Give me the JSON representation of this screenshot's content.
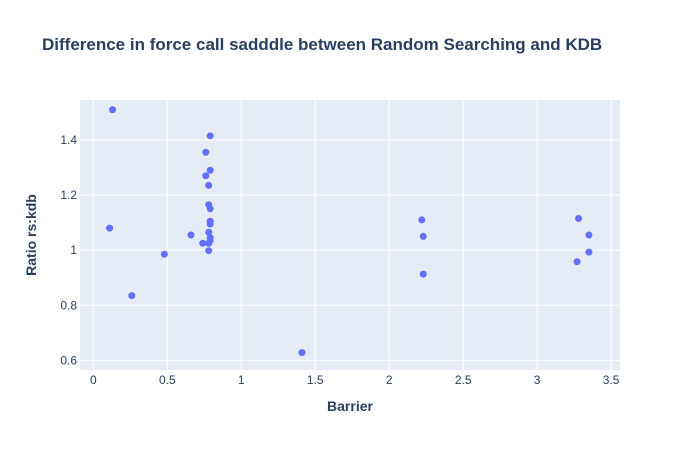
{
  "chart_data": {
    "type": "scatter",
    "title": "Difference in force call sadddle between Random Searching and KDB",
    "xlabel": "Barrier",
    "ylabel": "Ratio rs:kdb",
    "xlim": [
      -0.09,
      3.56
    ],
    "ylim": [
      0.565,
      1.545
    ],
    "x_ticks": [
      0,
      0.5,
      1,
      1.5,
      2,
      2.5,
      3,
      3.5
    ],
    "x_tick_labels": [
      "0",
      "0.5",
      "1",
      "1.5",
      "2",
      "2.5",
      "3",
      "3.5"
    ],
    "y_ticks": [
      0.6,
      0.8,
      1.0,
      1.2,
      1.4
    ],
    "y_tick_labels": [
      "0.6",
      "0.8",
      "1",
      "1.2",
      "1.4"
    ],
    "grid": true,
    "background_color": "#e5ecf6",
    "marker_color": "#636efa",
    "series": [
      {
        "points": [
          [
            0.13,
            1.51
          ],
          [
            0.11,
            1.08
          ],
          [
            0.26,
            0.835
          ],
          [
            0.48,
            0.985
          ],
          [
            0.66,
            1.055
          ],
          [
            0.74,
            1.025
          ],
          [
            0.76,
            1.355
          ],
          [
            0.76,
            1.27
          ],
          [
            0.78,
            1.235
          ],
          [
            0.79,
            1.415
          ],
          [
            0.79,
            1.29
          ],
          [
            0.78,
            1.165
          ],
          [
            0.79,
            1.15
          ],
          [
            0.79,
            1.105
          ],
          [
            0.79,
            1.095
          ],
          [
            0.78,
            1.065
          ],
          [
            0.79,
            1.045
          ],
          [
            0.79,
            1.035
          ],
          [
            0.78,
            1.025
          ],
          [
            0.78,
            0.998
          ],
          [
            1.41,
            0.628
          ],
          [
            2.22,
            1.11
          ],
          [
            2.23,
            1.05
          ],
          [
            2.23,
            0.913
          ],
          [
            3.28,
            1.115
          ],
          [
            3.35,
            1.055
          ],
          [
            3.35,
            0.993
          ],
          [
            3.27,
            0.958
          ]
        ]
      }
    ]
  }
}
